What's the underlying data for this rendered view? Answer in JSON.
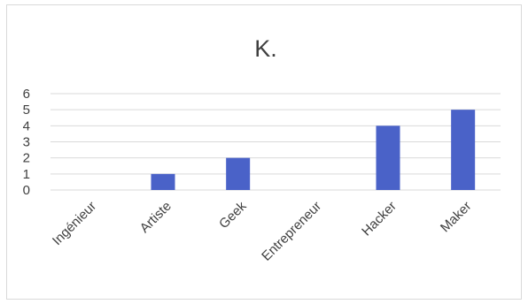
{
  "chart_data": {
    "type": "bar",
    "title": "K.",
    "categories": [
      "Ingénieur",
      "Artiste",
      "Geek",
      "Entrepreneur",
      "Hacker",
      "Maker"
    ],
    "values": [
      0,
      1,
      2,
      0,
      4,
      5
    ],
    "ylim": [
      0,
      6
    ],
    "yticks": [
      0,
      1,
      2,
      3,
      4,
      5,
      6
    ],
    "grid": true,
    "legend": "none",
    "bar_color": "#4a62c8",
    "xlabel": "",
    "ylabel": ""
  }
}
